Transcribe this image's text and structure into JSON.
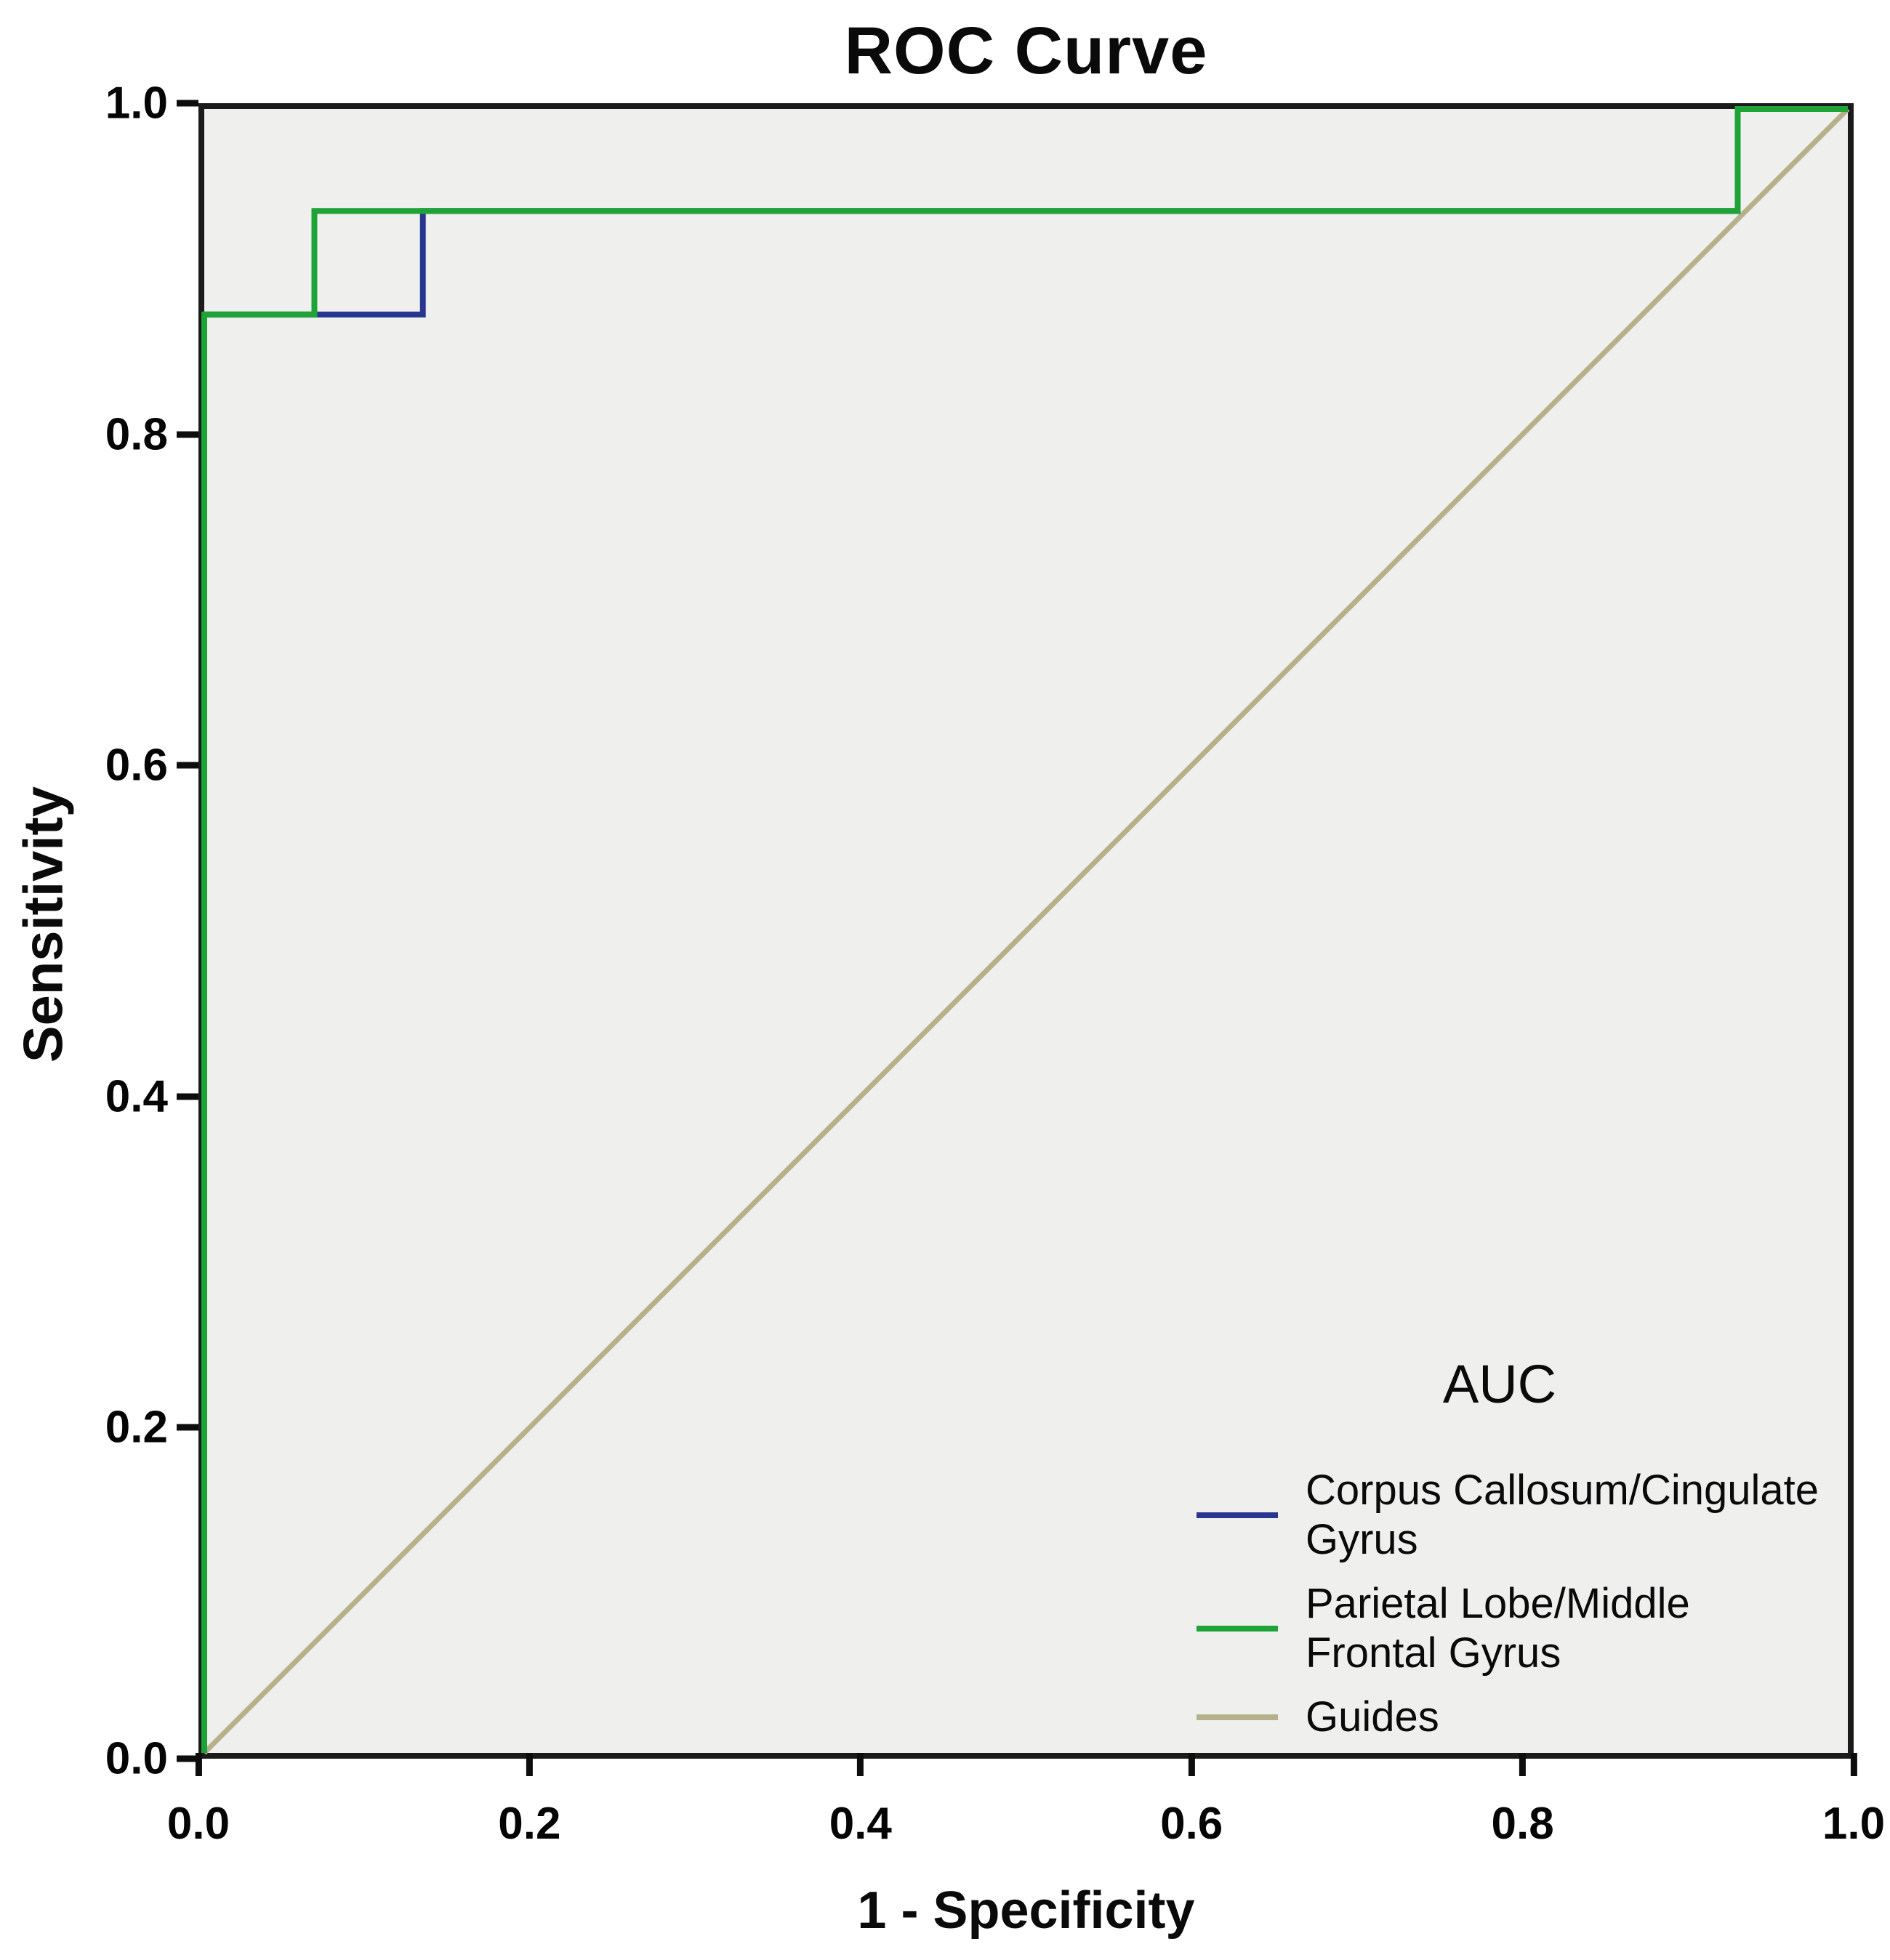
{
  "chart_data": {
    "type": "line",
    "title": "ROC Curve",
    "xlabel": "1 - Specificity",
    "ylabel": "Sensitivity",
    "xlim": [
      0.0,
      1.0
    ],
    "ylim": [
      0.0,
      1.0
    ],
    "x_tick_labels": [
      "0.0",
      "0.2",
      "0.4",
      "0.6",
      "0.8",
      "1.0"
    ],
    "y_tick_labels": [
      "0.0",
      "0.2",
      "0.4",
      "0.6",
      "0.8",
      "1.0"
    ],
    "grid": false,
    "plot_background": "#efefee",
    "frame_color": "#1b1b1b",
    "legend": {
      "title": "AUC",
      "position": "inside-lower-right",
      "entries": [
        {
          "lines": [
            "Corpus Callosum/Cingulate",
            "Gyrus"
          ],
          "color": "#27368f"
        },
        {
          "lines": [
            "Parietal Lobe/Middle",
            "Frontal Gyrus"
          ],
          "color": "#1ea436"
        },
        {
          "lines": [
            "Guides"
          ],
          "color": "#b4b18b"
        }
      ]
    },
    "series": [
      {
        "name": "Corpus Callosum/Cingulate Gyrus",
        "slug": "corpus-callosum-cingulate-gyrus",
        "color": "#27368f",
        "stroke_width": 8,
        "points": [
          [
            0,
            0
          ],
          [
            0,
            0.875
          ],
          [
            0.133,
            0.875
          ],
          [
            0.133,
            0.938
          ],
          [
            0.933,
            0.938
          ],
          [
            0.933,
            1
          ],
          [
            1,
            1
          ]
        ]
      },
      {
        "name": "Parietal Lobe/Middle Frontal Gyrus",
        "slug": "parietal-lobe-middle-frontal-gyrus",
        "color": "#1ea436",
        "stroke_width": 8,
        "points": [
          [
            0,
            0
          ],
          [
            0,
            0.875
          ],
          [
            0.067,
            0.875
          ],
          [
            0.067,
            0.938
          ],
          [
            0.933,
            0.938
          ],
          [
            0.933,
            1
          ],
          [
            1,
            1
          ]
        ]
      },
      {
        "name": "Guides",
        "slug": "guides",
        "color": "#b4b18b",
        "stroke_width": 7,
        "points": [
          [
            0,
            0
          ],
          [
            1,
            1
          ]
        ]
      }
    ],
    "draw_order": [
      2,
      0,
      1
    ]
  }
}
